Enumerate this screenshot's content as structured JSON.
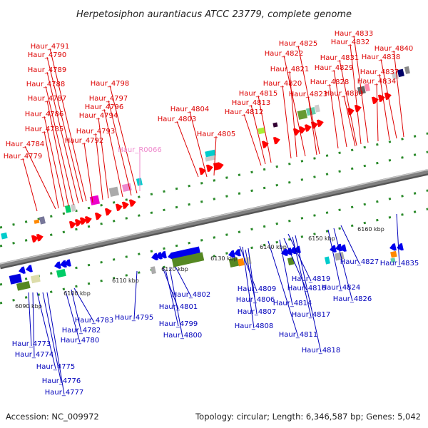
{
  "title": "Herpetosiphon aurantiacus ATCC 23779, complete genome",
  "footer": {
    "accession": "Accession: NC_009972",
    "topology": "Topology: circular; Length: 6,346,587 bp; Genes: 5,042"
  },
  "colors": {
    "upper_label": "#dd0000",
    "lower_label": "#0000bb",
    "rna_label": "#ee88cc",
    "backbone": "#808080"
  },
  "kbp_ticks": [
    "6090 kbp",
    "6100 kbp",
    "6110 kbp",
    "6120 kbp",
    "6130 kbp",
    "6140 kbp",
    "6150 kbp",
    "6160 kbp"
  ],
  "upper_labels": [
    "Haur_4779",
    "Haur_4784",
    "Haur_4785",
    "Haur_4786",
    "Haur_4787",
    "Haur_4788",
    "Haur_4789",
    "Haur_4790",
    "Haur_4791",
    "Haur_4792",
    "Haur_4793",
    "Haur_4794",
    "Haur_4796",
    "Haur_4797",
    "Haur_4798",
    "Haur_4803",
    "Haur_4804",
    "Haur_4805",
    "Haur_4812",
    "Haur_4813",
    "Haur_4815",
    "Haur_4820",
    "Haur_4821",
    "Haur_4822",
    "Haur_4823",
    "Haur_4825",
    "Haur_4828",
    "Haur_4829",
    "Haur_4830",
    "Haur_4831",
    "Haur_4832",
    "Haur_4833",
    "Haur_4834",
    "Haur_4837",
    "Haur_4838",
    "Haur_4840"
  ],
  "rna_labels": [
    "Haur_R0066"
  ],
  "lower_labels": [
    "Haur_4773",
    "Haur_4774",
    "Haur_4775",
    "Haur_4776",
    "Haur_4777",
    "Haur_4780",
    "Haur_4782",
    "Haur_4783",
    "Haur_4795",
    "Haur_4799",
    "Haur_4800",
    "Haur_4801",
    "Haur_4802",
    "Haur_4806",
    "Haur_4807",
    "Haur_4808",
    "Haur_4809",
    "Haur_4811",
    "Haur_4814",
    "Haur_4816",
    "Haur_4817",
    "Haur_4818",
    "Haur_4819",
    "Haur_4824",
    "Haur_4826",
    "Haur_4827",
    "Haur_4835"
  ]
}
